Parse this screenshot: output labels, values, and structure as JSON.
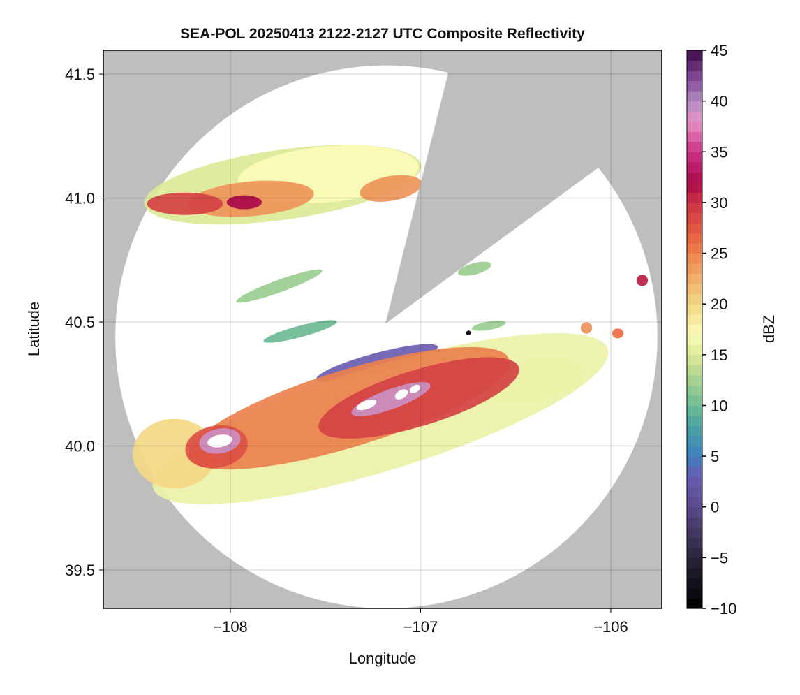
{
  "chart_data": {
    "type": "heatmap",
    "title": "SEA-POL 20250413 2122-2127 UTC Composite Reflectivity",
    "xlabel": "Longitude",
    "ylabel": "Latitude",
    "xlim": [
      -108.668,
      -105.732
    ],
    "ylim": [
      39.345,
      41.596
    ],
    "xticks": [
      -108,
      -107,
      -106
    ],
    "xtick_labels": [
      "−108",
      "−107",
      "−106"
    ],
    "yticks": [
      39.5,
      40.0,
      40.5,
      41.0,
      41.5
    ],
    "ytick_labels": [
      "39.5",
      "40.0",
      "40.5",
      "41.0",
      "41.5"
    ],
    "grid": true,
    "no_data_color": "#bebebe",
    "radar": {
      "center_lon": -107.18,
      "center_lat": 40.44,
      "range_lon": 1.425,
      "range_lat": 1.095,
      "blocked_sector": {
        "apex": [
          -107.185,
          40.493
        ],
        "edge1": [
          -106.85,
          41.52
        ],
        "edge2": [
          -106.07,
          41.12
        ]
      }
    },
    "colorbar": {
      "label": "dBZ",
      "range": [
        -10,
        45
      ],
      "step": 1,
      "ticks": [
        -10,
        -5,
        0,
        5,
        10,
        15,
        20,
        25,
        30,
        35,
        40,
        45
      ],
      "tick_labels": [
        "−10",
        "−5",
        "0",
        "5",
        "10",
        "15",
        "20",
        "25",
        "30",
        "35",
        "40",
        "45"
      ],
      "anchors": [
        [
          -10,
          "#000000"
        ],
        [
          -5,
          "#2a2238"
        ],
        [
          0,
          "#5a4a8a"
        ],
        [
          3,
          "#6a5cb0"
        ],
        [
          5,
          "#3f7fbf"
        ],
        [
          8,
          "#4aa3a0"
        ],
        [
          10,
          "#6cbb93"
        ],
        [
          13,
          "#b2d690"
        ],
        [
          15,
          "#dce996"
        ],
        [
          17,
          "#fbfbb8"
        ],
        [
          20,
          "#f3d886"
        ],
        [
          23,
          "#efa865"
        ],
        [
          26,
          "#eb6d42"
        ],
        [
          30,
          "#cc3344"
        ],
        [
          32,
          "#a8094a"
        ],
        [
          35,
          "#cc3083"
        ],
        [
          38,
          "#e594c5"
        ],
        [
          40,
          "#b08cc0"
        ],
        [
          42,
          "#8a4f9e"
        ],
        [
          45,
          "#3d0a4a"
        ]
      ]
    },
    "echoes": [
      {
        "name": "north-band-base",
        "lon": -107.725,
        "lat": 41.054,
        "rlon": 0.734,
        "rlat": 0.141,
        "rot": -8,
        "dbz": 15
      },
      {
        "name": "north-band-mid",
        "lon": -107.486,
        "lat": 41.096,
        "rlon": 0.477,
        "rlat": 0.113,
        "rot": -5,
        "dbz": 17
      },
      {
        "name": "north-band-core",
        "lon": -107.89,
        "lat": 40.997,
        "rlon": 0.33,
        "rlat": 0.07,
        "rot": -5,
        "dbz": 24
      },
      {
        "name": "north-band-east",
        "lon": -107.156,
        "lat": 41.039,
        "rlon": 0.165,
        "rlat": 0.05,
        "rot": -10,
        "dbz": 24
      },
      {
        "name": "north-band-west-core",
        "lon": -108.239,
        "lat": 40.977,
        "rlon": 0.2,
        "rlat": 0.045,
        "rot": 0,
        "dbz": 29
      },
      {
        "name": "north-band-max",
        "lon": -107.927,
        "lat": 40.983,
        "rlon": 0.092,
        "rlat": 0.028,
        "rot": 0,
        "dbz": 32
      },
      {
        "name": "line-a",
        "lon": -107.743,
        "lat": 40.645,
        "rlon": 0.24,
        "rlat": 0.025,
        "rot": -20,
        "dbz": 12
      },
      {
        "name": "line-b",
        "lon": -107.633,
        "lat": 40.462,
        "rlon": 0.2,
        "rlat": 0.023,
        "rot": -15,
        "dbz": 10
      },
      {
        "name": "cell-ne",
        "lon": -106.716,
        "lat": 40.715,
        "rlon": 0.09,
        "rlat": 0.023,
        "rot": -15,
        "dbz": 12
      },
      {
        "name": "cell-e",
        "lon": -106.642,
        "lat": 40.485,
        "rlon": 0.09,
        "rlat": 0.017,
        "rot": -10,
        "dbz": 12
      },
      {
        "name": "cell-far-e",
        "lon": -105.835,
        "lat": 40.668,
        "rlon": 0.03,
        "rlat": 0.023,
        "rot": 0,
        "dbz": 31
      },
      {
        "name": "cell-e2",
        "lon": -106.128,
        "lat": 40.476,
        "rlon": 0.03,
        "rlat": 0.023,
        "rot": 0,
        "dbz": 24
      },
      {
        "name": "cell-e3",
        "lon": -105.963,
        "lat": 40.454,
        "rlon": 0.03,
        "rlat": 0.02,
        "rot": 0,
        "dbz": 26
      },
      {
        "name": "south-band-edge",
        "lon": -107.229,
        "lat": 40.335,
        "rlon": 0.33,
        "rlat": 0.04,
        "rot": -15,
        "dbz": 3
      },
      {
        "name": "south-band-base",
        "lon": -107.211,
        "lat": 40.11,
        "rlon": 1.25,
        "rlat": 0.21,
        "rot": -17,
        "dbz": 16
      },
      {
        "name": "south-band-east",
        "lon": -106.422,
        "lat": 40.265,
        "rlon": 0.29,
        "rlat": 0.085,
        "rot": -10,
        "dbz": 16
      },
      {
        "name": "south-band-west",
        "lon": -108.294,
        "lat": 39.969,
        "rlon": 0.22,
        "rlat": 0.14,
        "rot": 0,
        "dbz": 20
      },
      {
        "name": "south-band-mid",
        "lon": -107.376,
        "lat": 40.152,
        "rlon": 0.88,
        "rlat": 0.155,
        "rot": -17,
        "dbz": 25
      },
      {
        "name": "south-band-core",
        "lon": -107.009,
        "lat": 40.194,
        "rlon": 0.55,
        "rlat": 0.113,
        "rot": -17,
        "dbz": 29
      },
      {
        "name": "west-cell",
        "lon": -108.073,
        "lat": 39.997,
        "rlon": 0.165,
        "rlat": 0.085,
        "rot": -10,
        "dbz": 28
      },
      {
        "name": "west-cell-core",
        "lon": -108.055,
        "lat": 40.02,
        "rlon": 0.11,
        "rlat": 0.05,
        "rot": -10,
        "dbz": 39
      },
      {
        "name": "west-cell-max",
        "lon": -108.055,
        "lat": 40.02,
        "rlon": 0.066,
        "rlat": 0.025,
        "rot": -10,
        "dbz": 50
      },
      {
        "name": "central-core",
        "lon": -107.156,
        "lat": 40.189,
        "rlon": 0.22,
        "rlat": 0.04,
        "rot": -20,
        "dbz": 39
      },
      {
        "name": "central-max-1",
        "lon": -107.284,
        "lat": 40.166,
        "rlon": 0.055,
        "rlat": 0.017,
        "rot": -20,
        "dbz": 50
      },
      {
        "name": "central-max-2",
        "lon": -107.101,
        "lat": 40.208,
        "rlon": 0.037,
        "rlat": 0.017,
        "rot": -30,
        "dbz": 50
      },
      {
        "name": "central-max-3",
        "lon": -107.03,
        "lat": 40.23,
        "rlon": 0.03,
        "rlat": 0.014,
        "rot": -30,
        "dbz": 50
      },
      {
        "name": "point-target",
        "lon": -106.749,
        "lat": 40.456,
        "rlon": 0.012,
        "rlat": 0.01,
        "rot": 45,
        "dbz": -10
      }
    ]
  }
}
